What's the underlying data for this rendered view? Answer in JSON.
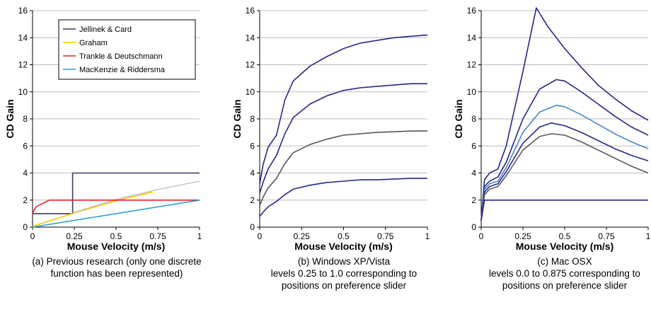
{
  "chart_data": [
    {
      "type": "line",
      "xlabel": "Mouse Velocity (m/s)",
      "ylabel": "CD Gain",
      "xlim": [
        0,
        1
      ],
      "ylim": [
        0,
        16
      ],
      "xticks": [
        "0",
        "0.25",
        "0.5",
        "0.75",
        "1"
      ],
      "yticks": [
        "0",
        "2",
        "4",
        "6",
        "8",
        "10",
        "12",
        "14",
        "16"
      ],
      "grid": "horizontal",
      "legend": "top-right",
      "caption": [
        "(a) Previous research (only one discrete",
        "function has been represented)"
      ],
      "series": [
        {
          "name": "Jellinek & Card",
          "color": "#3a3a66",
          "x": [
            0,
            0.24,
            0.24,
            1
          ],
          "y": [
            1,
            1,
            4,
            4
          ]
        },
        {
          "name": "Graham",
          "color": "#f5c400",
          "x": [
            0,
            0.25,
            0.5,
            0.72
          ],
          "y": [
            0.05,
            1.05,
            1.95,
            2.6
          ]
        },
        {
          "name": "",
          "color": "#c8c8c8",
          "x": [
            0.25,
            0.5,
            0.72,
            1
          ],
          "y": [
            1.1,
            2.05,
            2.7,
            3.4
          ]
        },
        {
          "name": "Trankle & Deutschmann",
          "color": "#e8202a",
          "x": [
            0,
            0.02,
            0.1,
            1
          ],
          "y": [
            1,
            1.5,
            2,
            2
          ]
        },
        {
          "name": "MacKenzie & Riddersma",
          "color": "#2aa0d0",
          "x": [
            0,
            1
          ],
          "y": [
            0,
            2
          ]
        }
      ]
    },
    {
      "type": "line",
      "xlabel": "Mouse Velocity (m/s)",
      "ylabel": "CD Gain",
      "xlim": [
        0,
        1
      ],
      "ylim": [
        0,
        16
      ],
      "xticks": [
        "0",
        "0.25",
        "0.5",
        "0.75",
        "1"
      ],
      "yticks": [
        "0",
        "2",
        "4",
        "6",
        "8",
        "10",
        "12",
        "14",
        "16"
      ],
      "grid": "horizontal",
      "caption": [
        "(b) Windows XP/Vista",
        "levels 0.25 to 1.0 corresponding to",
        "positions on preference slider"
      ],
      "series": [
        {
          "color": "#26268c",
          "x": [
            0,
            0.02,
            0.05,
            0.1,
            0.15,
            0.2,
            0.3,
            0.4,
            0.5,
            0.6,
            0.7,
            0.8,
            0.9,
            1.0
          ],
          "y": [
            3.2,
            4.6,
            5.9,
            6.8,
            9.4,
            10.8,
            11.9,
            12.6,
            13.2,
            13.6,
            13.8,
            14.0,
            14.1,
            14.2
          ]
        },
        {
          "color": "#26268c",
          "x": [
            0,
            0.02,
            0.05,
            0.1,
            0.15,
            0.2,
            0.3,
            0.4,
            0.5,
            0.6,
            0.7,
            0.8,
            0.9,
            1.0
          ],
          "y": [
            2.5,
            3.3,
            4.3,
            5.3,
            6.9,
            8.1,
            9.1,
            9.7,
            10.1,
            10.3,
            10.4,
            10.5,
            10.6,
            10.6
          ]
        },
        {
          "color": "#555555",
          "x": [
            0,
            0.02,
            0.05,
            0.1,
            0.15,
            0.2,
            0.3,
            0.4,
            0.5,
            0.6,
            0.7,
            0.8,
            0.9,
            1.0
          ],
          "y": [
            1.6,
            2.2,
            2.9,
            3.6,
            4.7,
            5.5,
            6.1,
            6.5,
            6.8,
            6.9,
            7.0,
            7.05,
            7.1,
            7.1
          ]
        },
        {
          "color": "#26268c",
          "x": [
            0,
            0.02,
            0.05,
            0.1,
            0.15,
            0.2,
            0.3,
            0.4,
            0.5,
            0.6,
            0.7,
            0.8,
            0.9,
            1.0
          ],
          "y": [
            0.8,
            1.1,
            1.5,
            1.9,
            2.4,
            2.8,
            3.1,
            3.3,
            3.4,
            3.5,
            3.5,
            3.55,
            3.6,
            3.6
          ]
        }
      ]
    },
    {
      "type": "line",
      "xlabel": "Mouse Velocity (m/s)",
      "ylabel": "CD Gain",
      "xlim": [
        0,
        1
      ],
      "ylim": [
        0,
        16
      ],
      "xticks": [
        "0",
        "0.25",
        "0.5",
        "0.75",
        "1"
      ],
      "yticks": [
        "0",
        "2",
        "4",
        "6",
        "8",
        "10",
        "12",
        "14",
        "16"
      ],
      "grid": "horizontal",
      "caption": [
        "(c) Mac OSX",
        "levels 0.0 to 0.875 corresponding to",
        "positions on preference slider"
      ],
      "series": [
        {
          "color": "#26268c",
          "x": [
            0,
            0.02,
            0.05,
            0.1,
            0.15,
            0.25,
            0.33,
            0.4,
            0.5,
            0.6,
            0.7,
            0.8,
            0.9,
            1.0
          ],
          "y": [
            0.5,
            3.5,
            4.0,
            4.3,
            6.0,
            11.5,
            16.2,
            14.8,
            13.2,
            11.8,
            10.5,
            9.5,
            8.6,
            7.9
          ]
        },
        {
          "color": "#26268c",
          "x": [
            0,
            0.02,
            0.05,
            0.1,
            0.15,
            0.25,
            0.35,
            0.45,
            0.5,
            0.6,
            0.7,
            0.8,
            0.9,
            1.0
          ],
          "y": [
            0.5,
            3.0,
            3.4,
            3.7,
            4.8,
            8.0,
            10.2,
            10.9,
            10.8,
            10.0,
            9.1,
            8.2,
            7.4,
            6.8
          ]
        },
        {
          "color": "#4a86c8",
          "x": [
            0,
            0.02,
            0.05,
            0.1,
            0.15,
            0.25,
            0.35,
            0.45,
            0.5,
            0.6,
            0.7,
            0.8,
            0.9,
            1.0
          ],
          "y": [
            0.5,
            2.8,
            3.2,
            3.4,
            4.4,
            7.0,
            8.5,
            9.0,
            8.9,
            8.3,
            7.6,
            6.9,
            6.3,
            5.8
          ]
        },
        {
          "color": "#26268c",
          "x": [
            0,
            0.02,
            0.05,
            0.1,
            0.15,
            0.25,
            0.35,
            0.42,
            0.5,
            0.6,
            0.7,
            0.8,
            0.9,
            1.0
          ],
          "y": [
            0.5,
            2.6,
            3.0,
            3.2,
            4.1,
            6.2,
            7.4,
            7.7,
            7.5,
            7.0,
            6.4,
            5.8,
            5.3,
            4.9
          ]
        },
        {
          "color": "#5a5a5a",
          "x": [
            0,
            0.02,
            0.05,
            0.1,
            0.15,
            0.25,
            0.35,
            0.42,
            0.5,
            0.6,
            0.7,
            0.8,
            0.9,
            1.0
          ],
          "y": [
            0.5,
            2.4,
            2.8,
            3.0,
            3.8,
            5.7,
            6.7,
            6.9,
            6.8,
            6.3,
            5.7,
            5.1,
            4.5,
            4.0
          ]
        },
        {
          "color": "#26268c",
          "x": [
            0,
            0.02,
            0.05,
            1.0
          ],
          "y": [
            0.5,
            2.0,
            2.0,
            2.0
          ]
        }
      ]
    }
  ]
}
